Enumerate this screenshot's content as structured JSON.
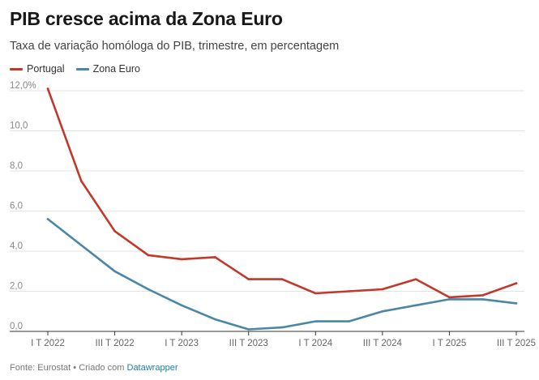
{
  "title": "PIB cresce acima da Zona Euro",
  "subtitle": "Taxa de variação homóloga do PIB, trimestre, em percentagem",
  "footer": {
    "source": "Fonte: Eurostat",
    "created_with": "• Criado com",
    "tool": "Datawrapper"
  },
  "chart_data": {
    "type": "line",
    "ylim": [
      0,
      12
    ],
    "y_ticks": [
      0,
      2,
      4,
      6,
      8,
      10,
      12
    ],
    "y_tick_labels": [
      "0,0",
      "2,0",
      "4,0",
      "6,0",
      "8,0",
      "10,0",
      "12,0%"
    ],
    "x": [
      "I T 2022",
      "II T 2022",
      "III T 2022",
      "IV T 2022",
      "I T 2023",
      "II T 2023",
      "III T 2023",
      "IV T 2023",
      "I T 2024",
      "II T 2024",
      "III T 2024",
      "IV T 2024",
      "I T 2025",
      "II T 2025",
      "III T 2025"
    ],
    "x_tick_labels": [
      "I T 2022",
      "III T 2022",
      "I T 2023",
      "III T 2023",
      "I T 2024",
      "III T 2024",
      "I T 2025",
      "III T 2025"
    ],
    "grid": true,
    "legend_position": "top-left",
    "series": [
      {
        "name": "Portugal",
        "color": "#c0392b",
        "values": [
          12.1,
          7.5,
          5.0,
          3.8,
          3.6,
          3.7,
          2.6,
          2.6,
          1.9,
          2.0,
          2.1,
          2.6,
          1.7,
          1.8,
          2.4
        ]
      },
      {
        "name": "Zona Euro",
        "color": "#4a86a8",
        "values": [
          5.6,
          4.3,
          3.0,
          2.1,
          1.3,
          0.6,
          0.1,
          0.2,
          0.5,
          0.5,
          1.0,
          1.3,
          1.6,
          1.6,
          1.4
        ]
      }
    ]
  }
}
